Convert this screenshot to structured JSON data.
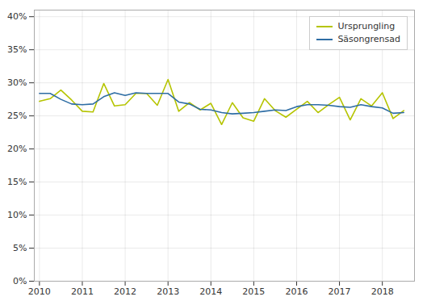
{
  "chart_data": {
    "type": "line",
    "x": [
      2010.0,
      2010.25,
      2010.5,
      2010.75,
      2011.0,
      2011.25,
      2011.5,
      2011.75,
      2012.0,
      2012.25,
      2012.5,
      2012.75,
      2013.0,
      2013.25,
      2013.5,
      2013.75,
      2014.0,
      2014.25,
      2014.5,
      2014.75,
      2015.0,
      2015.25,
      2015.5,
      2015.75,
      2016.0,
      2016.25,
      2016.5,
      2016.75,
      2017.0,
      2017.25,
      2017.5,
      2017.75,
      2018.0,
      2018.25,
      2018.5
    ],
    "series": [
      {
        "name": "Ursprungling",
        "color": "#b5c400",
        "values": [
          0.272,
          0.276,
          0.289,
          0.274,
          0.257,
          0.256,
          0.299,
          0.265,
          0.267,
          0.284,
          0.284,
          0.266,
          0.305,
          0.257,
          0.27,
          0.259,
          0.269,
          0.237,
          0.27,
          0.247,
          0.242,
          0.276,
          0.258,
          0.248,
          0.26,
          0.272,
          0.255,
          0.267,
          0.278,
          0.244,
          0.276,
          0.265,
          0.285,
          0.246,
          0.258
        ]
      },
      {
        "name": "Säsongrensad",
        "color": "#2e6da4",
        "values": [
          0.284,
          0.284,
          0.275,
          0.268,
          0.267,
          0.268,
          0.279,
          0.285,
          0.281,
          0.285,
          0.284,
          0.284,
          0.284,
          0.271,
          0.268,
          0.26,
          0.259,
          0.255,
          0.253,
          0.254,
          0.255,
          0.257,
          0.259,
          0.258,
          0.264,
          0.267,
          0.267,
          0.266,
          0.264,
          0.263,
          0.267,
          0.264,
          0.262,
          0.254,
          0.255
        ]
      }
    ],
    "xlim": [
      2009.88,
      2018.75
    ],
    "xticks": [
      2010,
      2011,
      2012,
      2013,
      2014,
      2015,
      2016,
      2017,
      2018
    ],
    "ylim": [
      0,
      0.41
    ],
    "yticks": [
      {
        "value": 0.0,
        "label": "0%"
      },
      {
        "value": 0.05,
        "label": "5%"
      },
      {
        "value": 0.1,
        "label": "10%"
      },
      {
        "value": 0.15,
        "label": "15%"
      },
      {
        "value": 0.2,
        "label": "20%"
      },
      {
        "value": 0.25,
        "label": "25%"
      },
      {
        "value": 0.3,
        "label": "30%"
      },
      {
        "value": 0.35,
        "label": "35%"
      },
      {
        "value": 0.4,
        "label": "40%"
      }
    ],
    "grid": true,
    "legend": "upper right"
  }
}
